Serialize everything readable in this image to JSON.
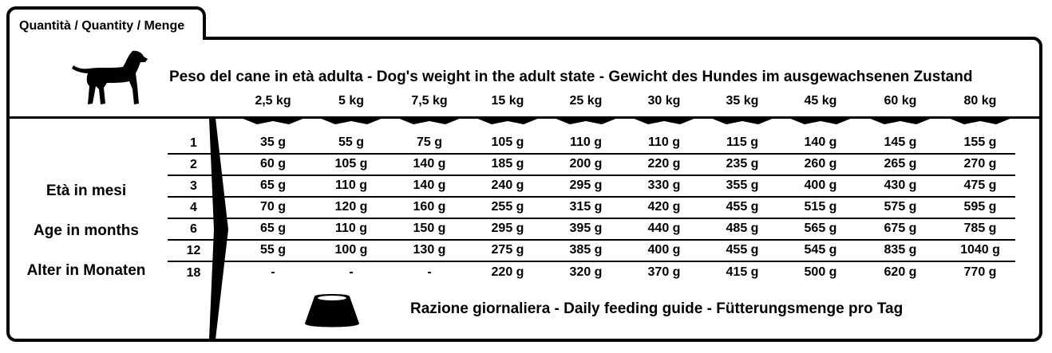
{
  "tab_label": "Quantità / Quantity / Menge",
  "header_title": "Peso del cane in età adulta - Dog's weight in the adult state - Gewicht des Hundes im ausgewachsenen Zustand",
  "weights": [
    "2,5 kg",
    "5 kg",
    "7,5 kg",
    "15 kg",
    "25 kg",
    "30 kg",
    "35 kg",
    "45 kg",
    "60 kg",
    "80 kg"
  ],
  "age_labels": [
    "Età in mesi",
    "Age in months",
    "Alter in Monaten"
  ],
  "rows": [
    {
      "age": "1",
      "values": [
        "35 g",
        "55 g",
        "75 g",
        "105 g",
        "110 g",
        "110 g",
        "115 g",
        "140 g",
        "145 g",
        "155 g"
      ]
    },
    {
      "age": "2",
      "values": [
        "60 g",
        "105 g",
        "140 g",
        "185 g",
        "200 g",
        "220 g",
        "235 g",
        "260 g",
        "265 g",
        "270 g"
      ]
    },
    {
      "age": "3",
      "values": [
        "65 g",
        "110 g",
        "140 g",
        "240 g",
        "295 g",
        "330 g",
        "355 g",
        "400 g",
        "430 g",
        "475 g"
      ]
    },
    {
      "age": "4",
      "values": [
        "70 g",
        "120 g",
        "160 g",
        "255 g",
        "315 g",
        "420 g",
        "455 g",
        "515 g",
        "575 g",
        "595 g"
      ]
    },
    {
      "age": "6",
      "values": [
        "65 g",
        "110 g",
        "150 g",
        "295 g",
        "395 g",
        "440 g",
        "485 g",
        "565 g",
        "675 g",
        "785 g"
      ]
    },
    {
      "age": "12",
      "values": [
        "55 g",
        "100 g",
        "130 g",
        "275 g",
        "385 g",
        "400 g",
        "455 g",
        "545 g",
        "835 g",
        "1040 g"
      ]
    },
    {
      "age": "18",
      "values": [
        "-",
        "-",
        "-",
        "220 g",
        "320 g",
        "370 g",
        "415 g",
        "500 g",
        "620 g",
        "770 g"
      ]
    }
  ],
  "footer": "Razione giornaliera - Daily feeding guide - Fütterungsmenge pro Tag",
  "icons": {
    "dog": "dog-silhouette-icon",
    "bowl": "food-bowl-icon"
  }
}
